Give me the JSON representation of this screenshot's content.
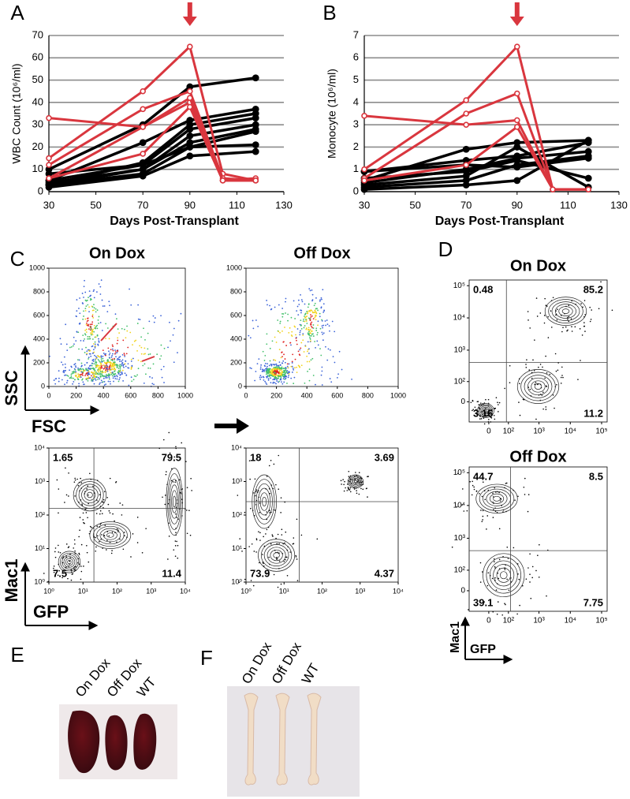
{
  "chart_data": [
    {
      "type": "line",
      "label": "A",
      "ylabel": "WBC Count (10⁶/ml)",
      "xlabel": "Days Post-Transplant",
      "xlim": [
        30,
        130
      ],
      "xticks": [
        30,
        50,
        70,
        90,
        110,
        130
      ],
      "ylim": [
        0,
        70
      ],
      "yticks": [
        0,
        10,
        20,
        30,
        40,
        50,
        60,
        70
      ],
      "grid": true,
      "series": [
        {
          "color": "#000000",
          "x": [
            30,
            70,
            90,
            118
          ],
          "values": [
            10,
            30,
            47,
            51
          ]
        },
        {
          "color": "#000000",
          "x": [
            30,
            70,
            90,
            118
          ],
          "values": [
            5,
            22,
            32,
            37
          ]
        },
        {
          "color": "#000000",
          "x": [
            30,
            70,
            90,
            118
          ],
          "values": [
            3,
            13,
            30,
            35
          ]
        },
        {
          "color": "#000000",
          "x": [
            30,
            70,
            90,
            118
          ],
          "values": [
            5,
            12,
            28,
            33
          ]
        },
        {
          "color": "#000000",
          "x": [
            30,
            70,
            90,
            118
          ],
          "values": [
            3,
            10,
            25,
            30
          ]
        },
        {
          "color": "#000000",
          "x": [
            30,
            70,
            90,
            118
          ],
          "values": [
            8,
            12,
            20,
            27
          ]
        },
        {
          "color": "#000000",
          "x": [
            30,
            70,
            90,
            118
          ],
          "values": [
            3,
            8,
            20,
            21
          ]
        },
        {
          "color": "#000000",
          "x": [
            30,
            70,
            90,
            118
          ],
          "values": [
            2,
            7,
            16,
            18
          ]
        },
        {
          "color": "#000000",
          "x": [
            30,
            70,
            90,
            118
          ],
          "values": [
            4,
            10,
            22,
            28
          ]
        },
        {
          "color": "#d9363e",
          "x": [
            30,
            70,
            90,
            104,
            118
          ],
          "values": [
            15,
            45,
            65,
            8,
            5
          ]
        },
        {
          "color": "#d9363e",
          "x": [
            30,
            70,
            90,
            104,
            118
          ],
          "values": [
            12,
            37,
            45,
            6,
            5
          ]
        },
        {
          "color": "#d9363e",
          "x": [
            30,
            70,
            90,
            104,
            118
          ],
          "values": [
            6,
            29,
            40,
            5,
            6
          ]
        },
        {
          "color": "#d9363e",
          "x": [
            30,
            70,
            90,
            104,
            118
          ],
          "values": [
            33,
            29,
            42,
            5,
            5
          ]
        },
        {
          "color": "#d9363e",
          "x": [
            30,
            70,
            90,
            104,
            118
          ],
          "values": [
            6,
            17,
            38,
            5,
            5
          ]
        }
      ]
    },
    {
      "type": "line",
      "label": "B",
      "ylabel": "Monocyte (10⁶/ml)",
      "xlabel": "Days Post-Transplant",
      "xlim": [
        30,
        130
      ],
      "xticks": [
        30,
        50,
        70,
        90,
        110,
        130
      ],
      "ylim": [
        0,
        7
      ],
      "yticks": [
        0,
        1,
        2,
        3,
        4,
        5,
        6,
        7
      ],
      "grid": true,
      "series": [
        {
          "color": "#000000",
          "x": [
            30,
            70,
            90,
            118
          ],
          "values": [
            0.5,
            1.9,
            2.2,
            2.3
          ]
        },
        {
          "color": "#000000",
          "x": [
            30,
            70,
            90,
            118
          ],
          "values": [
            0.9,
            1.4,
            1.6,
            2.2
          ]
        },
        {
          "color": "#000000",
          "x": [
            30,
            70,
            90,
            118
          ],
          "values": [
            0.4,
            1.0,
            1.5,
            1.8
          ]
        },
        {
          "color": "#000000",
          "x": [
            30,
            70,
            90,
            118
          ],
          "values": [
            0.2,
            0.5,
            1.2,
            1.6
          ]
        },
        {
          "color": "#000000",
          "x": [
            30,
            70,
            90,
            118
          ],
          "values": [
            0.3,
            0.7,
            2.0,
            0.2
          ]
        },
        {
          "color": "#000000",
          "x": [
            30,
            70,
            90,
            118
          ],
          "values": [
            0.1,
            0.3,
            0.5,
            2.3
          ]
        },
        {
          "color": "#000000",
          "x": [
            30,
            70,
            90,
            118
          ],
          "values": [
            0.6,
            0.9,
            1.4,
            0.6
          ]
        },
        {
          "color": "#000000",
          "x": [
            30,
            70,
            90,
            118
          ],
          "values": [
            0.9,
            1.2,
            1.1,
            1.5
          ]
        },
        {
          "color": "#d9363e",
          "x": [
            30,
            70,
            90,
            104,
            118
          ],
          "values": [
            1.0,
            4.1,
            6.5,
            0.1,
            0.1
          ]
        },
        {
          "color": "#d9363e",
          "x": [
            30,
            70,
            90,
            104,
            118
          ],
          "values": [
            0.6,
            3.5,
            4.4,
            0.1,
            0.1
          ]
        },
        {
          "color": "#d9363e",
          "x": [
            30,
            70,
            90,
            104,
            118
          ],
          "values": [
            3.4,
            3.0,
            3.2,
            0.1,
            0.1
          ]
        },
        {
          "color": "#d9363e",
          "x": [
            30,
            70,
            90,
            104,
            118
          ],
          "values": [
            0.5,
            1.2,
            2.9,
            0.1,
            0.1
          ]
        }
      ]
    }
  ],
  "flow_c": {
    "label": "C",
    "scatter": {
      "xlim": [
        0,
        1000
      ],
      "ylim": [
        0,
        1000
      ],
      "xticks": [
        0,
        200,
        400,
        600,
        800,
        1000
      ],
      "yticks": [
        0,
        200,
        400,
        600,
        800,
        1000
      ],
      "ylabel": "SSC",
      "xlabel": "FSC"
    },
    "contour": {
      "log": true,
      "xlim": [
        1,
        10000
      ],
      "ylim": [
        1,
        10000
      ],
      "xticks": [
        {
          "value": 1,
          "label": "10⁰"
        },
        {
          "value": 10,
          "label": "10¹"
        },
        {
          "value": 100,
          "label": "10²"
        },
        {
          "value": 1000,
          "label": "10³"
        },
        {
          "value": 10000,
          "label": "10⁴"
        }
      ],
      "yticks": [
        {
          "value": 1,
          "label": "10⁰"
        },
        {
          "value": 10,
          "label": "10¹"
        },
        {
          "value": 100,
          "label": "10²"
        },
        {
          "value": 1000,
          "label": "10³"
        },
        {
          "value": 10000,
          "label": "10⁴"
        }
      ],
      "ylabel": "Mac1",
      "xlabel": "GFP"
    },
    "columns": [
      {
        "title": "On Dox",
        "quadrants": [
          1.65,
          79.5,
          7.5,
          11.4
        ]
      },
      {
        "title": "Off Dox",
        "quadrants": [
          18,
          3.69,
          73.9,
          4.37
        ]
      }
    ]
  },
  "flow_d": {
    "label": "D",
    "scale": "biexponential",
    "ylabel": "Mac1",
    "xlabel": "GFP",
    "xlim": [
      -100,
      150000
    ],
    "ylim": [
      -100,
      150000
    ],
    "xticks": [
      0,
      {
        "value": 100,
        "label": "10²"
      },
      {
        "value": 1000,
        "label": "10³"
      },
      {
        "value": 10000,
        "label": "10⁴"
      },
      {
        "value": 100000,
        "label": "10⁵"
      }
    ],
    "yticks": [
      0,
      {
        "value": 100,
        "label": "10²"
      },
      {
        "value": 1000,
        "label": "10³"
      },
      {
        "value": 10000,
        "label": "10⁴"
      },
      {
        "value": 100000,
        "label": "10⁵"
      }
    ],
    "plots": [
      {
        "title": "On Dox",
        "quadrants": [
          0.48,
          85.2,
          3.16,
          11.2
        ]
      },
      {
        "title": "Off Dox",
        "quadrants": [
          44.7,
          8.5,
          39.1,
          7.75
        ]
      }
    ]
  },
  "photos": [
    {
      "label": "E",
      "samples": [
        "On Dox",
        "Off Dox",
        "WT"
      ]
    },
    {
      "label": "F",
      "samples": [
        "On Dox",
        "Off Dox",
        "WT"
      ]
    }
  ]
}
